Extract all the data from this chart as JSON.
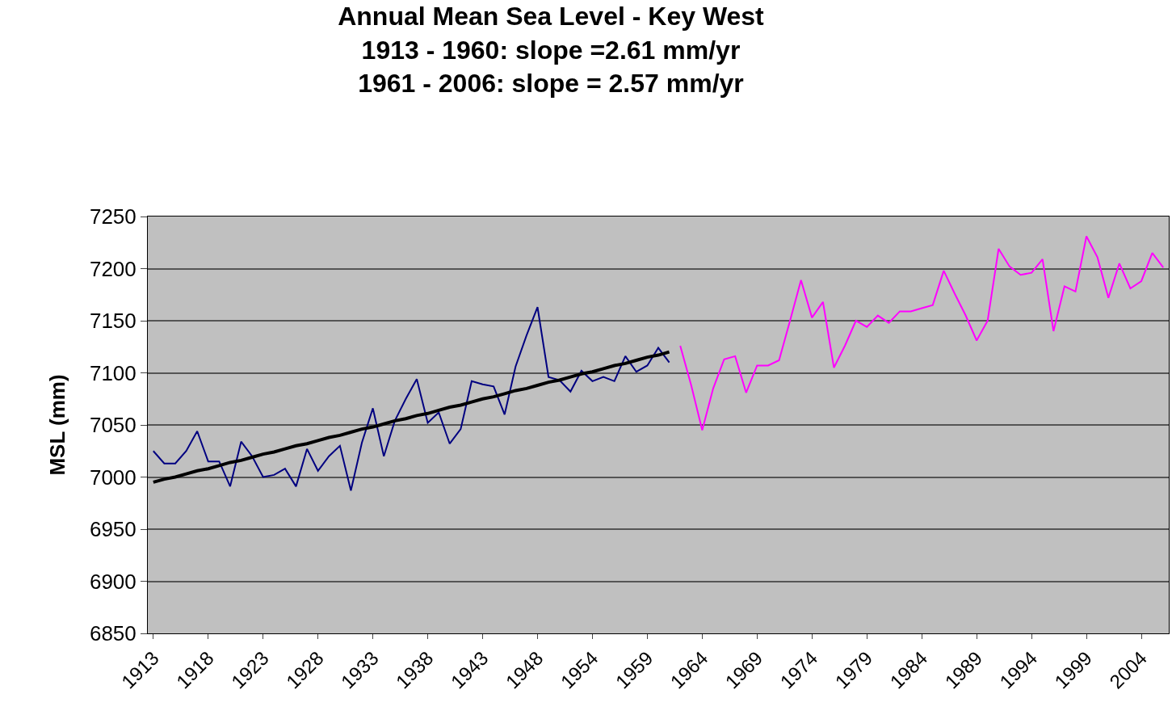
{
  "chart_data": {
    "type": "line",
    "title": "Annual Mean Sea Level - Key West\n1913 - 1960: slope =2.61 mm/yr\n1961 - 2006: slope = 2.57 mm/yr",
    "ylabel": "MSL (mm)",
    "categories": [
      "1913",
      null,
      null,
      null,
      null,
      "1918",
      null,
      null,
      null,
      null,
      "1923",
      null,
      null,
      null,
      null,
      "1928",
      null,
      null,
      null,
      null,
      "1933",
      null,
      null,
      null,
      null,
      "1938",
      null,
      null,
      null,
      null,
      "1943",
      null,
      null,
      null,
      null,
      "1948",
      null,
      null,
      null,
      null,
      "1954",
      null,
      null,
      null,
      null,
      "1959",
      null,
      null,
      null,
      null,
      "1964",
      null,
      null,
      null,
      null,
      "1969",
      null,
      null,
      null,
      null,
      "1974",
      null,
      null,
      null,
      null,
      "1979",
      null,
      null,
      null,
      null,
      "1984",
      null,
      null,
      null,
      null,
      "1989",
      null,
      null,
      null,
      null,
      "1994",
      null,
      null,
      null,
      null,
      "1999",
      null,
      null,
      null,
      null,
      "2004",
      null,
      null
    ],
    "series": [
      {
        "color": "#000080",
        "values": [
          7025,
          7013,
          7013,
          7025,
          7044,
          7015,
          7015,
          6991,
          7034,
          7020,
          7000,
          7002,
          7008,
          6991,
          7027,
          7006,
          7020,
          7030,
          6987,
          7033,
          7066,
          7020,
          7054,
          7075,
          7094,
          7052,
          7062,
          7032,
          7046,
          7092,
          7089,
          7087,
          7060,
          7106,
          7136,
          7163,
          7096,
          7093,
          7082,
          7102,
          7092,
          7096,
          7092,
          7116,
          7101,
          7107,
          7124,
          7110,
          null,
          null,
          null,
          null,
          null,
          null,
          null,
          null,
          null,
          null,
          null,
          null,
          null,
          null,
          null,
          null,
          null,
          null,
          null,
          null,
          null,
          null,
          null,
          null,
          null,
          null,
          null,
          null,
          null,
          null,
          null,
          null,
          null,
          null,
          null,
          null,
          null,
          null,
          null,
          null,
          null,
          null,
          null,
          null,
          null
        ]
      },
      {
        "color": "#ff00ff",
        "values": [
          null,
          null,
          null,
          null,
          null,
          null,
          null,
          null,
          null,
          null,
          null,
          null,
          null,
          null,
          null,
          null,
          null,
          null,
          null,
          null,
          null,
          null,
          null,
          null,
          null,
          null,
          null,
          null,
          null,
          null,
          null,
          null,
          null,
          null,
          null,
          null,
          null,
          null,
          null,
          null,
          null,
          null,
          null,
          null,
          null,
          null,
          null,
          null,
          7126,
          7088,
          7045,
          7085,
          7113,
          7116,
          7081,
          7107,
          7107,
          7112,
          7150,
          7189,
          7153,
          7168,
          7105,
          7126,
          7150,
          7144,
          7155,
          7148,
          7159,
          7159,
          7162,
          7165,
          7198,
          7176,
          7155,
          7131,
          7150,
          7219,
          7202,
          7194,
          7196,
          7209,
          7140,
          7183,
          7178,
          7231,
          7211,
          7172,
          7205,
          7181,
          7188,
          7215,
          7201
        ]
      },
      {
        "color": "#000000",
        "values": [
          6995,
          6998,
          7000,
          7003,
          7006,
          7008,
          7011,
          7014,
          7016,
          7019,
          7022,
          7024,
          7027,
          7030,
          7032,
          7035,
          7038,
          7040,
          7043,
          7046,
          7048,
          7051,
          7054,
          7056,
          7059,
          7061,
          7064,
          7067,
          7069,
          7072,
          7075,
          7077,
          7080,
          7083,
          7085,
          7088,
          7091,
          7093,
          7096,
          7099,
          7101,
          7104,
          7107,
          7109,
          7112,
          7115,
          7117,
          7120,
          null,
          null,
          null,
          null,
          null,
          null,
          null,
          null,
          null,
          null,
          null,
          null,
          null,
          null,
          null,
          null,
          null,
          null,
          null,
          null,
          null,
          null,
          null,
          null,
          null,
          null,
          null,
          null,
          null,
          null,
          null,
          null,
          null,
          null,
          null,
          null,
          null,
          null,
          null,
          null,
          null,
          null,
          null,
          null,
          null
        ]
      }
    ],
    "ylim": [
      6850,
      7250
    ],
    "yticks": [
      6850,
      6900,
      6950,
      7000,
      7050,
      7100,
      7150,
      7200,
      7250
    ],
    "grid": "y",
    "marker": "none",
    "line_style": "solid"
  }
}
